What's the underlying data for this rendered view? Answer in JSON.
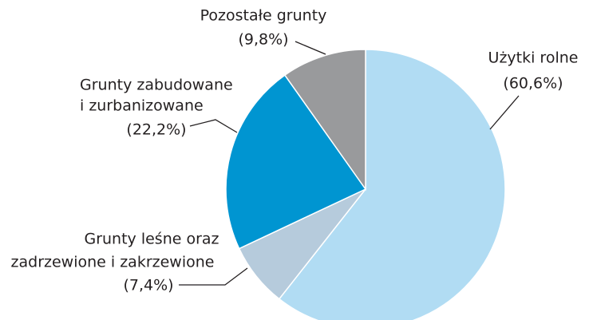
{
  "chart_data": {
    "type": "pie",
    "categories": [
      [
        "Użytki rolne"
      ],
      [
        "Grunty leśne oraz",
        "zadrzewione i zakrzewione"
      ],
      [
        "Grunty zabudowane",
        "i zurbanizowane"
      ],
      [
        "Pozostałe grunty"
      ]
    ],
    "values": [
      60.6,
      7.4,
      22.2,
      9.8
    ],
    "value_labels": [
      "(60,6%)",
      "(7,4%)",
      "(22,2%)",
      "(9,8%)"
    ],
    "colors": [
      "#b1dcf3",
      "#b6cbdc",
      "#0095d1",
      "#999a9c"
    ]
  }
}
